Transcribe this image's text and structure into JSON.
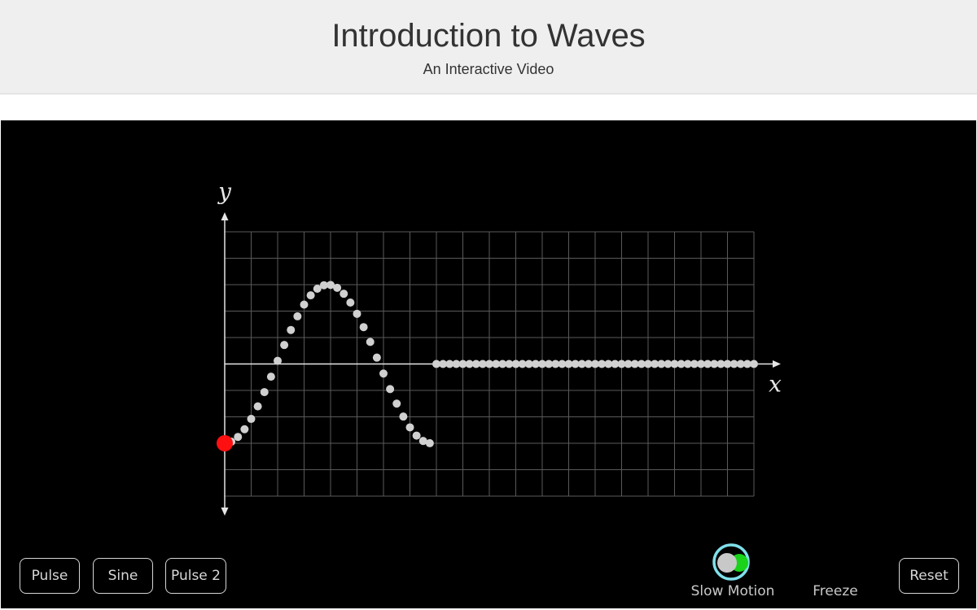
{
  "header": {
    "title": "Introduction to Waves",
    "subtitle": "An Interactive Video"
  },
  "controls": {
    "buttons": [
      {
        "id": "pulse",
        "label": "Pulse"
      },
      {
        "id": "sine",
        "label": "Sine"
      },
      {
        "id": "pulse2",
        "label": "Pulse 2"
      }
    ],
    "slow_motion_label": "Slow Motion",
    "slow_motion_on": true,
    "freeze_label": "Freeze",
    "reset_label": "Reset"
  },
  "colors": {
    "background": "#000000",
    "grid": "#5a5a5a",
    "axis": "#e6e6e6",
    "particle": "#d0d0d0",
    "driver": "#ff1010",
    "toggle_ring": "#7fe0ea",
    "toggle_on": "#19d219"
  },
  "chart_data": {
    "type": "scatter",
    "xlabel": "x",
    "ylabel": "y",
    "xlim": [
      0,
      20
    ],
    "ylim": [
      -5,
      5
    ],
    "grid": true,
    "grid_divisions": {
      "x": 20,
      "y": 10
    },
    "driver_point": {
      "x": 0,
      "y": -3
    },
    "wave": {
      "amplitude": 3,
      "wavelength": 7.8,
      "front_x": 7.8,
      "particle_spacing": 0.25,
      "x_end": 20
    }
  }
}
